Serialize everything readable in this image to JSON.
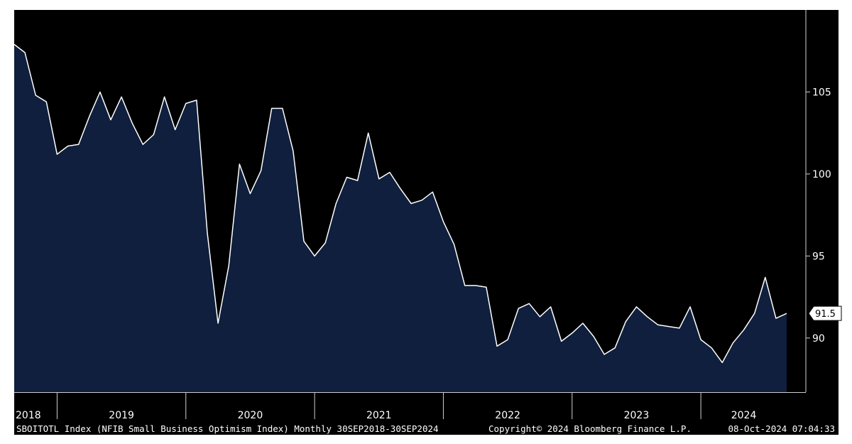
{
  "chart_data": {
    "type": "area",
    "title": "",
    "xlabel": "",
    "ylabel": "",
    "ylim": [
      86.7,
      110
    ],
    "y_ticks": [
      90,
      95,
      100,
      105
    ],
    "grid": false,
    "legend": "none",
    "last_value_label": "91.5",
    "x_tick_labels": [
      "2018",
      "2019",
      "2020",
      "2021",
      "2022",
      "2023",
      "2024"
    ],
    "x_year_boundaries": [
      "2019-01",
      "2020-01",
      "2021-01",
      "2022-01",
      "2023-01",
      "2024-01"
    ],
    "series": [
      {
        "x": [
          "2018-09",
          "2018-10",
          "2018-11",
          "2018-12",
          "2019-01",
          "2019-02",
          "2019-03",
          "2019-04",
          "2019-05",
          "2019-06",
          "2019-07",
          "2019-08",
          "2019-09",
          "2019-10",
          "2019-11",
          "2019-12",
          "2020-01",
          "2020-02",
          "2020-03",
          "2020-04",
          "2020-05",
          "2020-06",
          "2020-07",
          "2020-08",
          "2020-09",
          "2020-10",
          "2020-11",
          "2020-12",
          "2021-01",
          "2021-02",
          "2021-03",
          "2021-04",
          "2021-05",
          "2021-06",
          "2021-07",
          "2021-08",
          "2021-09",
          "2021-10",
          "2021-11",
          "2021-12",
          "2022-01",
          "2022-02",
          "2022-03",
          "2022-04",
          "2022-05",
          "2022-06",
          "2022-07",
          "2022-08",
          "2022-09",
          "2022-10",
          "2022-11",
          "2022-12",
          "2023-01",
          "2023-02",
          "2023-03",
          "2023-04",
          "2023-05",
          "2023-06",
          "2023-07",
          "2023-08",
          "2023-09",
          "2023-10",
          "2023-11",
          "2023-12",
          "2024-01",
          "2024-02",
          "2024-03",
          "2024-04",
          "2024-05",
          "2024-06",
          "2024-07",
          "2024-08",
          "2024-09"
        ],
        "values": [
          107.9,
          107.4,
          104.8,
          104.4,
          101.2,
          101.7,
          101.8,
          103.5,
          105.0,
          103.3,
          104.7,
          103.1,
          101.8,
          102.4,
          104.7,
          102.7,
          104.3,
          104.5,
          96.4,
          90.9,
          94.4,
          100.6,
          98.8,
          100.2,
          104.0,
          104.0,
          101.4,
          95.9,
          95.0,
          95.8,
          98.2,
          99.8,
          99.6,
          102.5,
          99.7,
          100.1,
          99.1,
          98.2,
          98.4,
          98.9,
          97.1,
          95.7,
          93.2,
          93.2,
          93.1,
          89.5,
          89.9,
          91.8,
          92.1,
          91.3,
          91.9,
          89.8,
          90.3,
          90.9,
          90.1,
          89.0,
          89.4,
          91.0,
          91.9,
          91.3,
          90.8,
          90.7,
          90.6,
          91.9,
          89.9,
          89.4,
          88.5,
          89.7,
          90.5,
          91.5,
          93.7,
          91.2,
          91.5
        ]
      }
    ]
  },
  "footer": {
    "ticker": "SBOITOTL Index (NFIB Small Business Optimism Index) Monthly 30SEP2018-30SEP2024",
    "copyright": "Copyright© 2024 Bloomberg Finance L.P.",
    "timestamp": "08-Oct-2024 07:04:33"
  },
  "colors": {
    "background": "#000000",
    "area_fill": "#0f1f3d",
    "line": "#ffffff",
    "axis_band": "#000000",
    "text": "#ffffff"
  }
}
